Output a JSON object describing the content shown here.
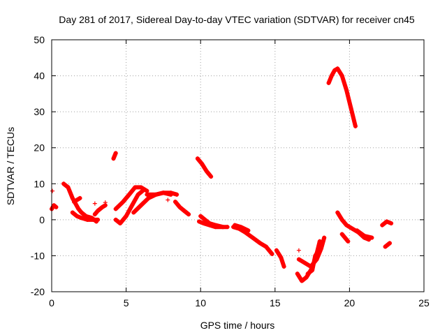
{
  "chart_data": {
    "type": "scatter",
    "title": "Day 281 of 2017, Sidereal Day-to-day VTEC variation (SDTVAR) for receiver cn45",
    "xlabel": "GPS time / hours",
    "ylabel": "SDTVAR / TECUs",
    "xlim": [
      0,
      25
    ],
    "ylim": [
      -20,
      50
    ],
    "xticks": [
      0,
      5,
      10,
      15,
      20,
      25
    ],
    "yticks": [
      -20,
      -10,
      0,
      10,
      20,
      30,
      40,
      50
    ],
    "grid": true,
    "marker": "+",
    "color": "#ff0000",
    "series": [
      {
        "name": "s1",
        "x": [
          0.0,
          0.15,
          0.3
        ],
        "y": [
          3,
          4,
          3.5
        ]
      },
      {
        "name": "s2",
        "x": [
          0.8,
          1.1,
          1.4,
          1.8,
          2.0,
          2.3,
          2.7,
          3.0
        ],
        "y": [
          10,
          9,
          6,
          3,
          2,
          1,
          0.5,
          -0.5
        ]
      },
      {
        "name": "s3",
        "x": [
          1.4,
          1.7,
          2.0,
          2.4,
          2.8,
          3.1
        ],
        "y": [
          2,
          1,
          0.5,
          0,
          0,
          0
        ]
      },
      {
        "name": "s4",
        "x": [
          1.5,
          1.9
        ],
        "y": [
          5,
          6
        ]
      },
      {
        "name": "s5",
        "x": [
          2.9,
          3.1,
          3.4,
          3.6
        ],
        "y": [
          1.5,
          2.5,
          3.5,
          4
        ]
      },
      {
        "name": "s6",
        "x": [
          4.15,
          4.3
        ],
        "y": [
          17,
          18.5
        ]
      },
      {
        "name": "s7",
        "x": [
          4.3,
          4.6,
          5.0,
          5.4,
          5.8,
          6.1
        ],
        "y": [
          0,
          -1,
          1,
          4,
          7,
          8
        ]
      },
      {
        "name": "s8",
        "x": [
          4.3,
          4.8,
          5.2,
          5.6,
          6.0,
          6.4
        ],
        "y": [
          3,
          5,
          7,
          9,
          9,
          8
        ]
      },
      {
        "name": "s9",
        "x": [
          5.5,
          6.0,
          6.5,
          7.0,
          7.5,
          8.0
        ],
        "y": [
          2,
          4,
          6,
          7,
          7.5,
          7
        ]
      },
      {
        "name": "s10",
        "x": [
          6.4,
          7.0,
          7.5,
          8.0,
          8.4
        ],
        "y": [
          7,
          7,
          7.5,
          7.5,
          7
        ]
      },
      {
        "name": "s11",
        "x": [
          8.3,
          8.6,
          8.9,
          9.2
        ],
        "y": [
          5,
          3.5,
          2.5,
          1.5
        ]
      },
      {
        "name": "s12",
        "x": [
          9.8,
          10.1,
          10.4,
          10.7
        ],
        "y": [
          17,
          15.5,
          13.5,
          12
        ]
      },
      {
        "name": "s13",
        "x": [
          10.0,
          10.3,
          10.6,
          11.0,
          11.5,
          11.8
        ],
        "y": [
          1,
          0,
          -1,
          -1.5,
          -2,
          -2
        ]
      },
      {
        "name": "s14",
        "x": [
          9.9,
          10.2,
          10.6,
          11.0,
          11.5
        ],
        "y": [
          -0.5,
          -1,
          -1.5,
          -2,
          -2
        ]
      },
      {
        "name": "s15",
        "x": [
          12.2,
          12.6,
          13.0,
          13.5,
          14.0,
          14.4,
          14.8
        ],
        "y": [
          -2,
          -2.5,
          -3.5,
          -5,
          -6.5,
          -7.5,
          -9.5
        ]
      },
      {
        "name": "s16",
        "x": [
          12.3,
          12.7,
          13.2
        ],
        "y": [
          -1.5,
          -2,
          -3
        ]
      },
      {
        "name": "s17",
        "x": [
          15.1,
          15.4,
          15.6
        ],
        "y": [
          -8.5,
          -10.5,
          -13
        ]
      },
      {
        "name": "s18",
        "x": [
          16.5,
          16.8,
          17.1,
          17.4,
          17.7,
          18.0
        ],
        "y": [
          -15,
          -17,
          -16,
          -14,
          -11,
          -6
        ]
      },
      {
        "name": "s19",
        "x": [
          16.6,
          17.0,
          17.4,
          17.8,
          18.1,
          18.3
        ],
        "y": [
          -11,
          -12,
          -13,
          -11,
          -8,
          -5
        ]
      },
      {
        "name": "s20",
        "x": [
          17.2,
          17.5,
          17.7,
          18.0
        ],
        "y": [
          -15,
          -14,
          -10,
          -8
        ]
      },
      {
        "name": "s21",
        "x": [
          18.6,
          18.8,
          19.0,
          19.2,
          19.5,
          19.8,
          20.1,
          20.4
        ],
        "y": [
          38,
          40,
          41.5,
          42,
          40,
          36,
          31,
          26
        ]
      },
      {
        "name": "s22",
        "x": [
          19.2,
          19.5,
          19.8,
          20.2,
          20.6,
          21.0,
          21.3
        ],
        "y": [
          2,
          0,
          -1.5,
          -2.5,
          -3.5,
          -5,
          -5.5
        ]
      },
      {
        "name": "s23",
        "x": [
          19.5,
          19.9
        ],
        "y": [
          -4,
          -6
        ]
      },
      {
        "name": "s24",
        "x": [
          20.5,
          21.0,
          21.5
        ],
        "y": [
          -3,
          -4.5,
          -5
        ]
      },
      {
        "name": "s25",
        "x": [
          22.2,
          22.5,
          22.8
        ],
        "y": [
          -1.5,
          -0.5,
          -1
        ]
      },
      {
        "name": "s26",
        "x": [
          22.4,
          22.7
        ],
        "y": [
          -7.5,
          -6.5
        ]
      }
    ],
    "outliers": {
      "x": [
        0.05,
        2.9,
        3.6,
        7.8,
        16.6
      ],
      "y": [
        8,
        4.5,
        4.8,
        5.5,
        -8.5
      ]
    }
  }
}
